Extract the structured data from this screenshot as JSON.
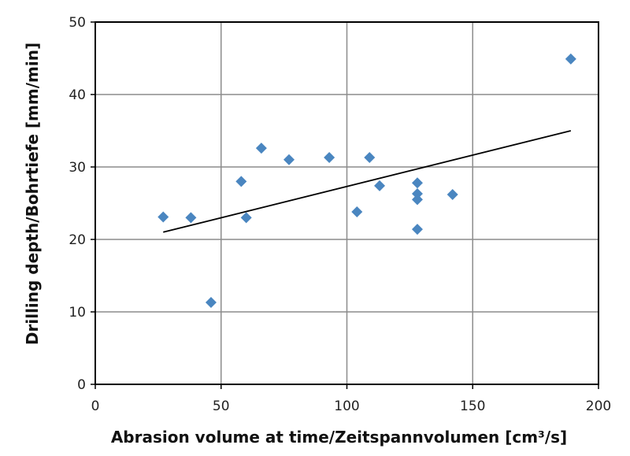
{
  "chart_data": {
    "type": "scatter",
    "title": "",
    "xlabel": "Abrasion volume at time/Zeitspannvolumen [cm³/s]",
    "ylabel": "Drilling depth/Bohrtiefe [mm/min]",
    "xlim": [
      0,
      200
    ],
    "ylim": [
      0,
      50
    ],
    "xticks": [
      "0",
      "50",
      "100",
      "150",
      "200"
    ],
    "yticks": [
      "0",
      "10",
      "20",
      "30",
      "40",
      "50"
    ],
    "grid": true,
    "legend": "none",
    "marker": "diamond",
    "marker_color": "#4a86c0",
    "trendline_color": "#000000",
    "points": [
      {
        "x": 27,
        "y": 23.1
      },
      {
        "x": 38,
        "y": 23.0
      },
      {
        "x": 46,
        "y": 11.3
      },
      {
        "x": 58,
        "y": 28.0
      },
      {
        "x": 60,
        "y": 23.0
      },
      {
        "x": 66,
        "y": 32.6
      },
      {
        "x": 77,
        "y": 31.0
      },
      {
        "x": 93,
        "y": 31.3
      },
      {
        "x": 104,
        "y": 23.8
      },
      {
        "x": 109,
        "y": 31.3
      },
      {
        "x": 113,
        "y": 27.4
      },
      {
        "x": 128,
        "y": 27.8
      },
      {
        "x": 128,
        "y": 26.3
      },
      {
        "x": 128,
        "y": 25.5
      },
      {
        "x": 128,
        "y": 21.4
      },
      {
        "x": 142,
        "y": 26.2
      },
      {
        "x": 189,
        "y": 44.9
      }
    ],
    "trendline": {
      "x": [
        27,
        189
      ],
      "y": [
        21.0,
        35.0
      ]
    }
  }
}
